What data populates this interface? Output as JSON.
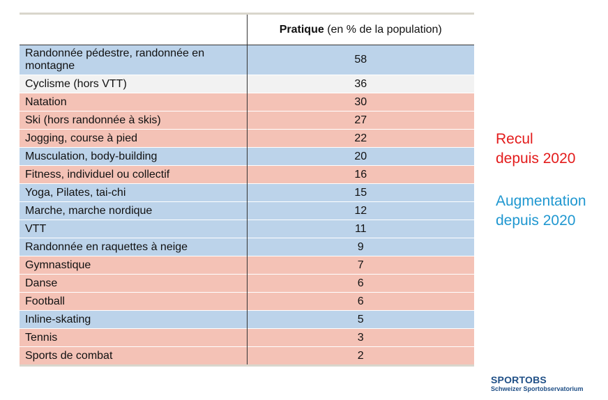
{
  "table": {
    "header": {
      "sport": "",
      "value_bold": "Pratique",
      "value_rest": " (en % de la population)"
    },
    "rows": [
      {
        "sport": "Randonnée pédestre, randonnée en montagne",
        "value": "58",
        "trend": "blue",
        "tall": true
      },
      {
        "sport": "Cyclisme (hors VTT)",
        "value": "36",
        "trend": "grey"
      },
      {
        "sport": "Natation",
        "value": "30",
        "trend": "red"
      },
      {
        "sport": "Ski (hors randonnée à skis)",
        "value": "27",
        "trend": "red"
      },
      {
        "sport": "Jogging, course à pied",
        "value": "22",
        "trend": "red"
      },
      {
        "sport": "Musculation, body-building",
        "value": "20",
        "trend": "blue"
      },
      {
        "sport": "Fitness, individuel ou collectif",
        "value": "16",
        "trend": "red"
      },
      {
        "sport": "Yoga, Pilates, tai-chi",
        "value": "15",
        "trend": "blue"
      },
      {
        "sport": "Marche, marche nordique",
        "value": "12",
        "trend": "blue"
      },
      {
        "sport": "VTT",
        "value": "11",
        "trend": "blue"
      },
      {
        "sport": "Randonnée en raquettes à neige",
        "value": "9",
        "trend": "blue"
      },
      {
        "sport": "Gymnastique",
        "value": "7",
        "trend": "red"
      },
      {
        "sport": "Danse",
        "value": "6",
        "trend": "red"
      },
      {
        "sport": "Football",
        "value": "6",
        "trend": "red"
      },
      {
        "sport": "Inline-skating",
        "value": "5",
        "trend": "blue"
      },
      {
        "sport": "Tennis",
        "value": "3",
        "trend": "red"
      },
      {
        "sport": "Sports de combat",
        "value": "2",
        "trend": "red"
      }
    ]
  },
  "legend": {
    "decline_line1": "Recul",
    "decline_line2": "depuis 2020",
    "increase_line1": "Augmentation",
    "increase_line2": "depuis 2020"
  },
  "logo": {
    "title": "SPORTOBS",
    "subtitle": "Schweizer Sportobservatorium"
  },
  "colors": {
    "decline_row": "#f4c2b6",
    "increase_row": "#bcd3ea",
    "neutral_row": "#f2f2f2",
    "decline_text": "#e31b1b",
    "increase_text": "#1f97d0",
    "logo": "#1f4f86"
  }
}
